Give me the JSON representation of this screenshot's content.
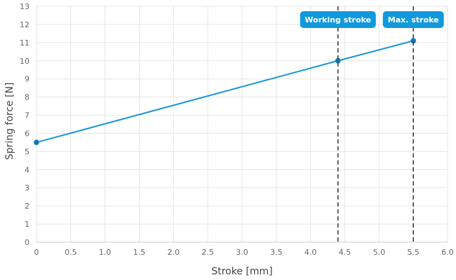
{
  "chart_data": {
    "type": "line",
    "xlabel": "Stroke [mm]",
    "ylabel": "Spring force [N]",
    "xlim": [
      0,
      6
    ],
    "ylim": [
      0,
      13
    ],
    "xticks": [
      "0",
      "0.5",
      "1.0",
      "1.5",
      "2.0",
      "2.5",
      "3.0",
      "3.5",
      "4.0",
      "4.5",
      "5.0",
      "5.5",
      "6.0"
    ],
    "yticks": [
      "0",
      "1",
      "2",
      "3",
      "4",
      "5",
      "6",
      "7",
      "8",
      "9",
      "10",
      "11",
      "12",
      "13"
    ],
    "grid": true,
    "series": [
      {
        "x": [
          0,
          4.4,
          5.5
        ],
        "y": [
          5.5,
          10.0,
          11.1
        ]
      }
    ],
    "markers": [
      {
        "label": "Working stroke",
        "x": 4.4
      },
      {
        "label": "Max. stroke",
        "x": 5.5
      }
    ],
    "colors": {
      "line": "#1a96d4",
      "point_fill": "#1c6fa8",
      "badge": "#1199dd",
      "grid": "#e6e6e6",
      "marker_line": "#333333"
    }
  }
}
